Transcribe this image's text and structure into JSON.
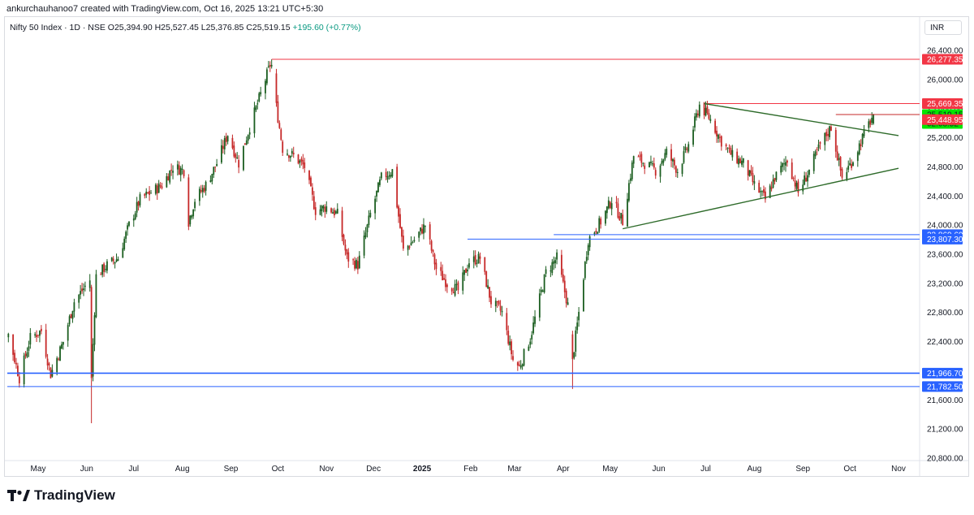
{
  "header": {
    "credit": "ankurchauhanoo7 created with TradingView.com, Oct 16, 2025 13:21 UTC+5:30",
    "symbol": "Nifty 50 Index · 1D · NSE",
    "ohlc": "O25,394.90 H25,527.45 L25,376.85 C25,519.15",
    "change": "+195.60 (+0.77%)",
    "currency": "INR"
  },
  "brand": {
    "name": "TradingView"
  },
  "colors": {
    "up": "#1b5e20",
    "down": "#c62828",
    "blue_line": "#2962ff",
    "red_line": "#f23645",
    "trend_line": "#2e6b2a",
    "label_red": "#f23645",
    "label_blue": "#2962ff",
    "label_green": "#00e600"
  },
  "chart_data": {
    "type": "candlestick",
    "title": "Nifty 50 Index · 1D · NSE",
    "ylim": [
      20800,
      26600
    ],
    "y_ticks": [
      "26,400.00",
      "26,000.00",
      "25,600.00",
      "25,200.00",
      "24,800.00",
      "24,400.00",
      "24,000.00",
      "23,600.00",
      "23,200.00",
      "22,800.00",
      "22,400.00",
      "22,000.00",
      "21,600.00",
      "21,200.00",
      "20,800.00"
    ],
    "x_ticks": [
      {
        "label": "May",
        "date": "2024-05-01"
      },
      {
        "label": "Jun",
        "date": "2024-06-01"
      },
      {
        "label": "Jul",
        "date": "2024-07-01"
      },
      {
        "label": "Aug",
        "date": "2024-08-01"
      },
      {
        "label": "Sep",
        "date": "2024-09-01"
      },
      {
        "label": "Oct",
        "date": "2024-10-01"
      },
      {
        "label": "Nov",
        "date": "2024-11-01"
      },
      {
        "label": "Dec",
        "date": "2024-12-01"
      },
      {
        "label": "2025",
        "date": "2025-01-01",
        "bold": true
      },
      {
        "label": "Feb",
        "date": "2025-02-01"
      },
      {
        "label": "Mar",
        "date": "2025-03-01"
      },
      {
        "label": "Apr",
        "date": "2025-04-01"
      },
      {
        "label": "May",
        "date": "2025-05-01"
      },
      {
        "label": "Jun",
        "date": "2025-06-01"
      },
      {
        "label": "Jul",
        "date": "2025-07-01"
      },
      {
        "label": "Aug",
        "date": "2025-08-01"
      },
      {
        "label": "Sep",
        "date": "2025-09-01"
      },
      {
        "label": "Oct",
        "date": "2025-10-01"
      },
      {
        "label": "Nov",
        "date": "2025-11-01"
      }
    ],
    "close_path": [
      [
        "2024-04-04",
        22700
      ],
      [
        "2024-04-12",
        22500
      ],
      [
        "2024-04-19",
        21900
      ],
      [
        "2024-04-26",
        22450
      ],
      [
        "2024-05-03",
        22550
      ],
      [
        "2024-05-09",
        21950
      ],
      [
        "2024-05-17",
        22400
      ],
      [
        "2024-05-24",
        22950
      ],
      [
        "2024-06-03",
        23250
      ],
      [
        "2024-06-04",
        21900
      ],
      [
        "2024-06-07",
        23300
      ],
      [
        "2024-06-14",
        23450
      ],
      [
        "2024-06-21",
        23550
      ],
      [
        "2024-06-28",
        24000
      ],
      [
        "2024-07-05",
        24350
      ],
      [
        "2024-07-12",
        24450
      ],
      [
        "2024-07-19",
        24550
      ],
      [
        "2024-07-26",
        24800
      ],
      [
        "2024-08-02",
        24750
      ],
      [
        "2024-08-05",
        24050
      ],
      [
        "2024-08-09",
        24350
      ],
      [
        "2024-08-16",
        24550
      ],
      [
        "2024-08-23",
        24850
      ],
      [
        "2024-08-30",
        25250
      ],
      [
        "2024-09-06",
        24850
      ],
      [
        "2024-09-13",
        25350
      ],
      [
        "2024-09-20",
        25800
      ],
      [
        "2024-09-26",
        26200
      ],
      [
        "2024-10-04",
        25050
      ],
      [
        "2024-10-11",
        24950
      ],
      [
        "2024-10-18",
        24800
      ],
      [
        "2024-10-25",
        24200
      ],
      [
        "2024-11-01",
        24250
      ],
      [
        "2024-11-08",
        24150
      ],
      [
        "2024-11-14",
        23550
      ],
      [
        "2024-11-21",
        23450
      ],
      [
        "2024-11-29",
        24150
      ],
      [
        "2024-12-06",
        24650
      ],
      [
        "2024-12-13",
        24750
      ],
      [
        "2024-12-20",
        23650
      ],
      [
        "2024-12-27",
        23800
      ],
      [
        "2025-01-03",
        24000
      ],
      [
        "2025-01-10",
        23400
      ],
      [
        "2025-01-17",
        23200
      ],
      [
        "2025-01-24",
        23100
      ],
      [
        "2025-01-31",
        23500
      ],
      [
        "2025-02-07",
        23550
      ],
      [
        "2025-02-14",
        22950
      ],
      [
        "2025-02-21",
        22800
      ],
      [
        "2025-02-28",
        22150
      ],
      [
        "2025-03-04",
        22050
      ],
      [
        "2025-03-11",
        22450
      ],
      [
        "2025-03-21",
        23350
      ],
      [
        "2025-03-28",
        23550
      ],
      [
        "2025-04-04",
        22900
      ],
      [
        "2025-04-07",
        22150
      ],
      [
        "2025-04-11",
        22800
      ],
      [
        "2025-04-17",
        23800
      ],
      [
        "2025-04-25",
        24050
      ],
      [
        "2025-05-02",
        24350
      ],
      [
        "2025-05-09",
        24050
      ],
      [
        "2025-05-16",
        24950
      ],
      [
        "2025-05-23",
        24850
      ],
      [
        "2025-05-30",
        24750
      ],
      [
        "2025-06-06",
        25000
      ],
      [
        "2025-06-13",
        24750
      ],
      [
        "2025-06-20",
        25100
      ],
      [
        "2025-06-27",
        25650
      ],
      [
        "2025-07-04",
        25450
      ],
      [
        "2025-07-11",
        25150
      ],
      [
        "2025-07-18",
        24950
      ],
      [
        "2025-07-25",
        24850
      ],
      [
        "2025-08-01",
        24550
      ],
      [
        "2025-08-08",
        24350
      ],
      [
        "2025-08-14",
        24650
      ],
      [
        "2025-08-22",
        24900
      ],
      [
        "2025-08-29",
        24450
      ],
      [
        "2025-09-05",
        24750
      ],
      [
        "2025-09-12",
        25100
      ],
      [
        "2025-09-19",
        25350
      ],
      [
        "2025-09-26",
        24650
      ],
      [
        "2025-10-03",
        24900
      ],
      [
        "2025-10-10",
        25250
      ],
      [
        "2025-10-16",
        25519
      ]
    ],
    "horizontal_levels": [
      {
        "value": 26277.35,
        "label": "26,277.35",
        "kind": "red",
        "from": "2024-09-27"
      },
      {
        "value": 25669.35,
        "label": "25,669.35",
        "kind": "red",
        "from": "2025-06-30"
      },
      {
        "value": 25519.15,
        "label": "25,519.15",
        "kind": "green",
        "sublabel": "02:08:52",
        "from": "2025-09-22"
      },
      {
        "value": 25448.95,
        "label": "25,448.95",
        "kind": "red"
      },
      {
        "value": 23869.6,
        "label": "23,869.60",
        "kind": "blue",
        "from": "2025-03-26"
      },
      {
        "value": 23807.3,
        "label": "23,807.30",
        "kind": "blue",
        "from": "2025-01-30"
      },
      {
        "value": 21966.7,
        "label": "21,966.70",
        "kind": "blue",
        "from": "2024-04-01"
      },
      {
        "value": 21782.5,
        "label": "21,782.50",
        "kind": "blue",
        "from": "2024-04-01"
      }
    ],
    "trend_lines": [
      {
        "from": [
          "2025-06-30",
          25669.35
        ],
        "to": [
          "2025-11-01",
          25230
        ]
      },
      {
        "from": [
          "2025-05-09",
          23950
        ],
        "to": [
          "2025-11-01",
          24780
        ]
      }
    ]
  }
}
